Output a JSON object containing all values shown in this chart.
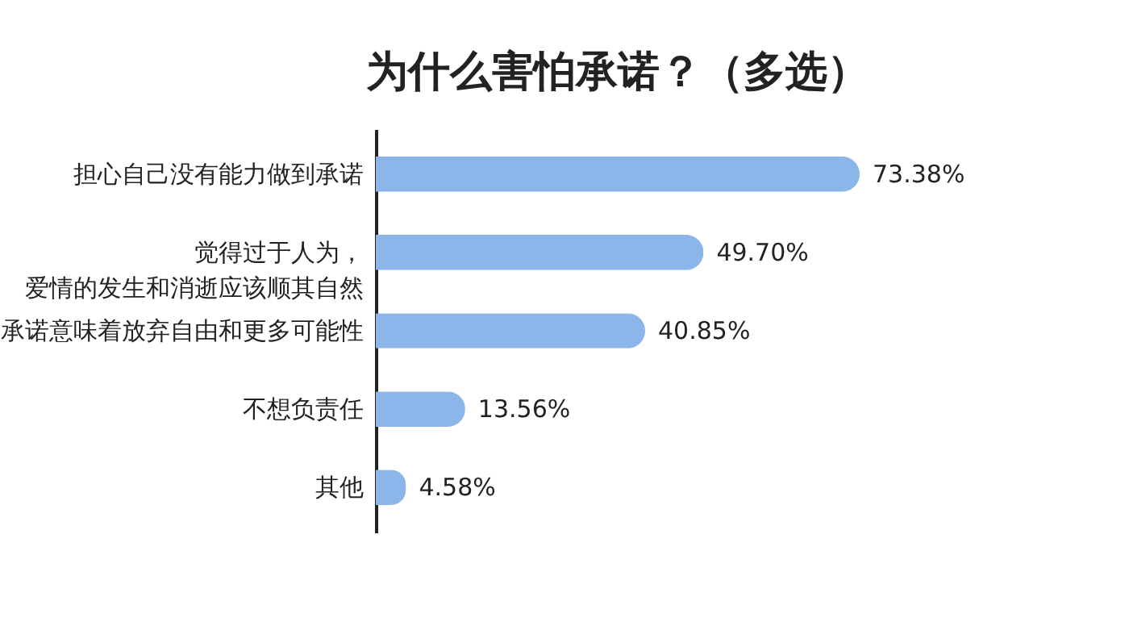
{
  "chart_data": {
    "type": "bar",
    "orientation": "horizontal",
    "title": "为什么害怕承诺？（多选）",
    "categories": [
      "担心自己没有能力做到承诺",
      "觉得过于人为，爱情的发生和消逝应该顺其自然",
      "承诺意味着放弃自由和更多可能性",
      "不想负责任",
      "其他"
    ],
    "values": [
      73.38,
      49.7,
      40.85,
      13.56,
      4.58
    ],
    "value_labels": [
      "73.38%",
      "49.70%",
      "40.85%",
      "13.56%",
      "4.58%"
    ],
    "color": "#8cb6ea",
    "grid": false
  }
}
